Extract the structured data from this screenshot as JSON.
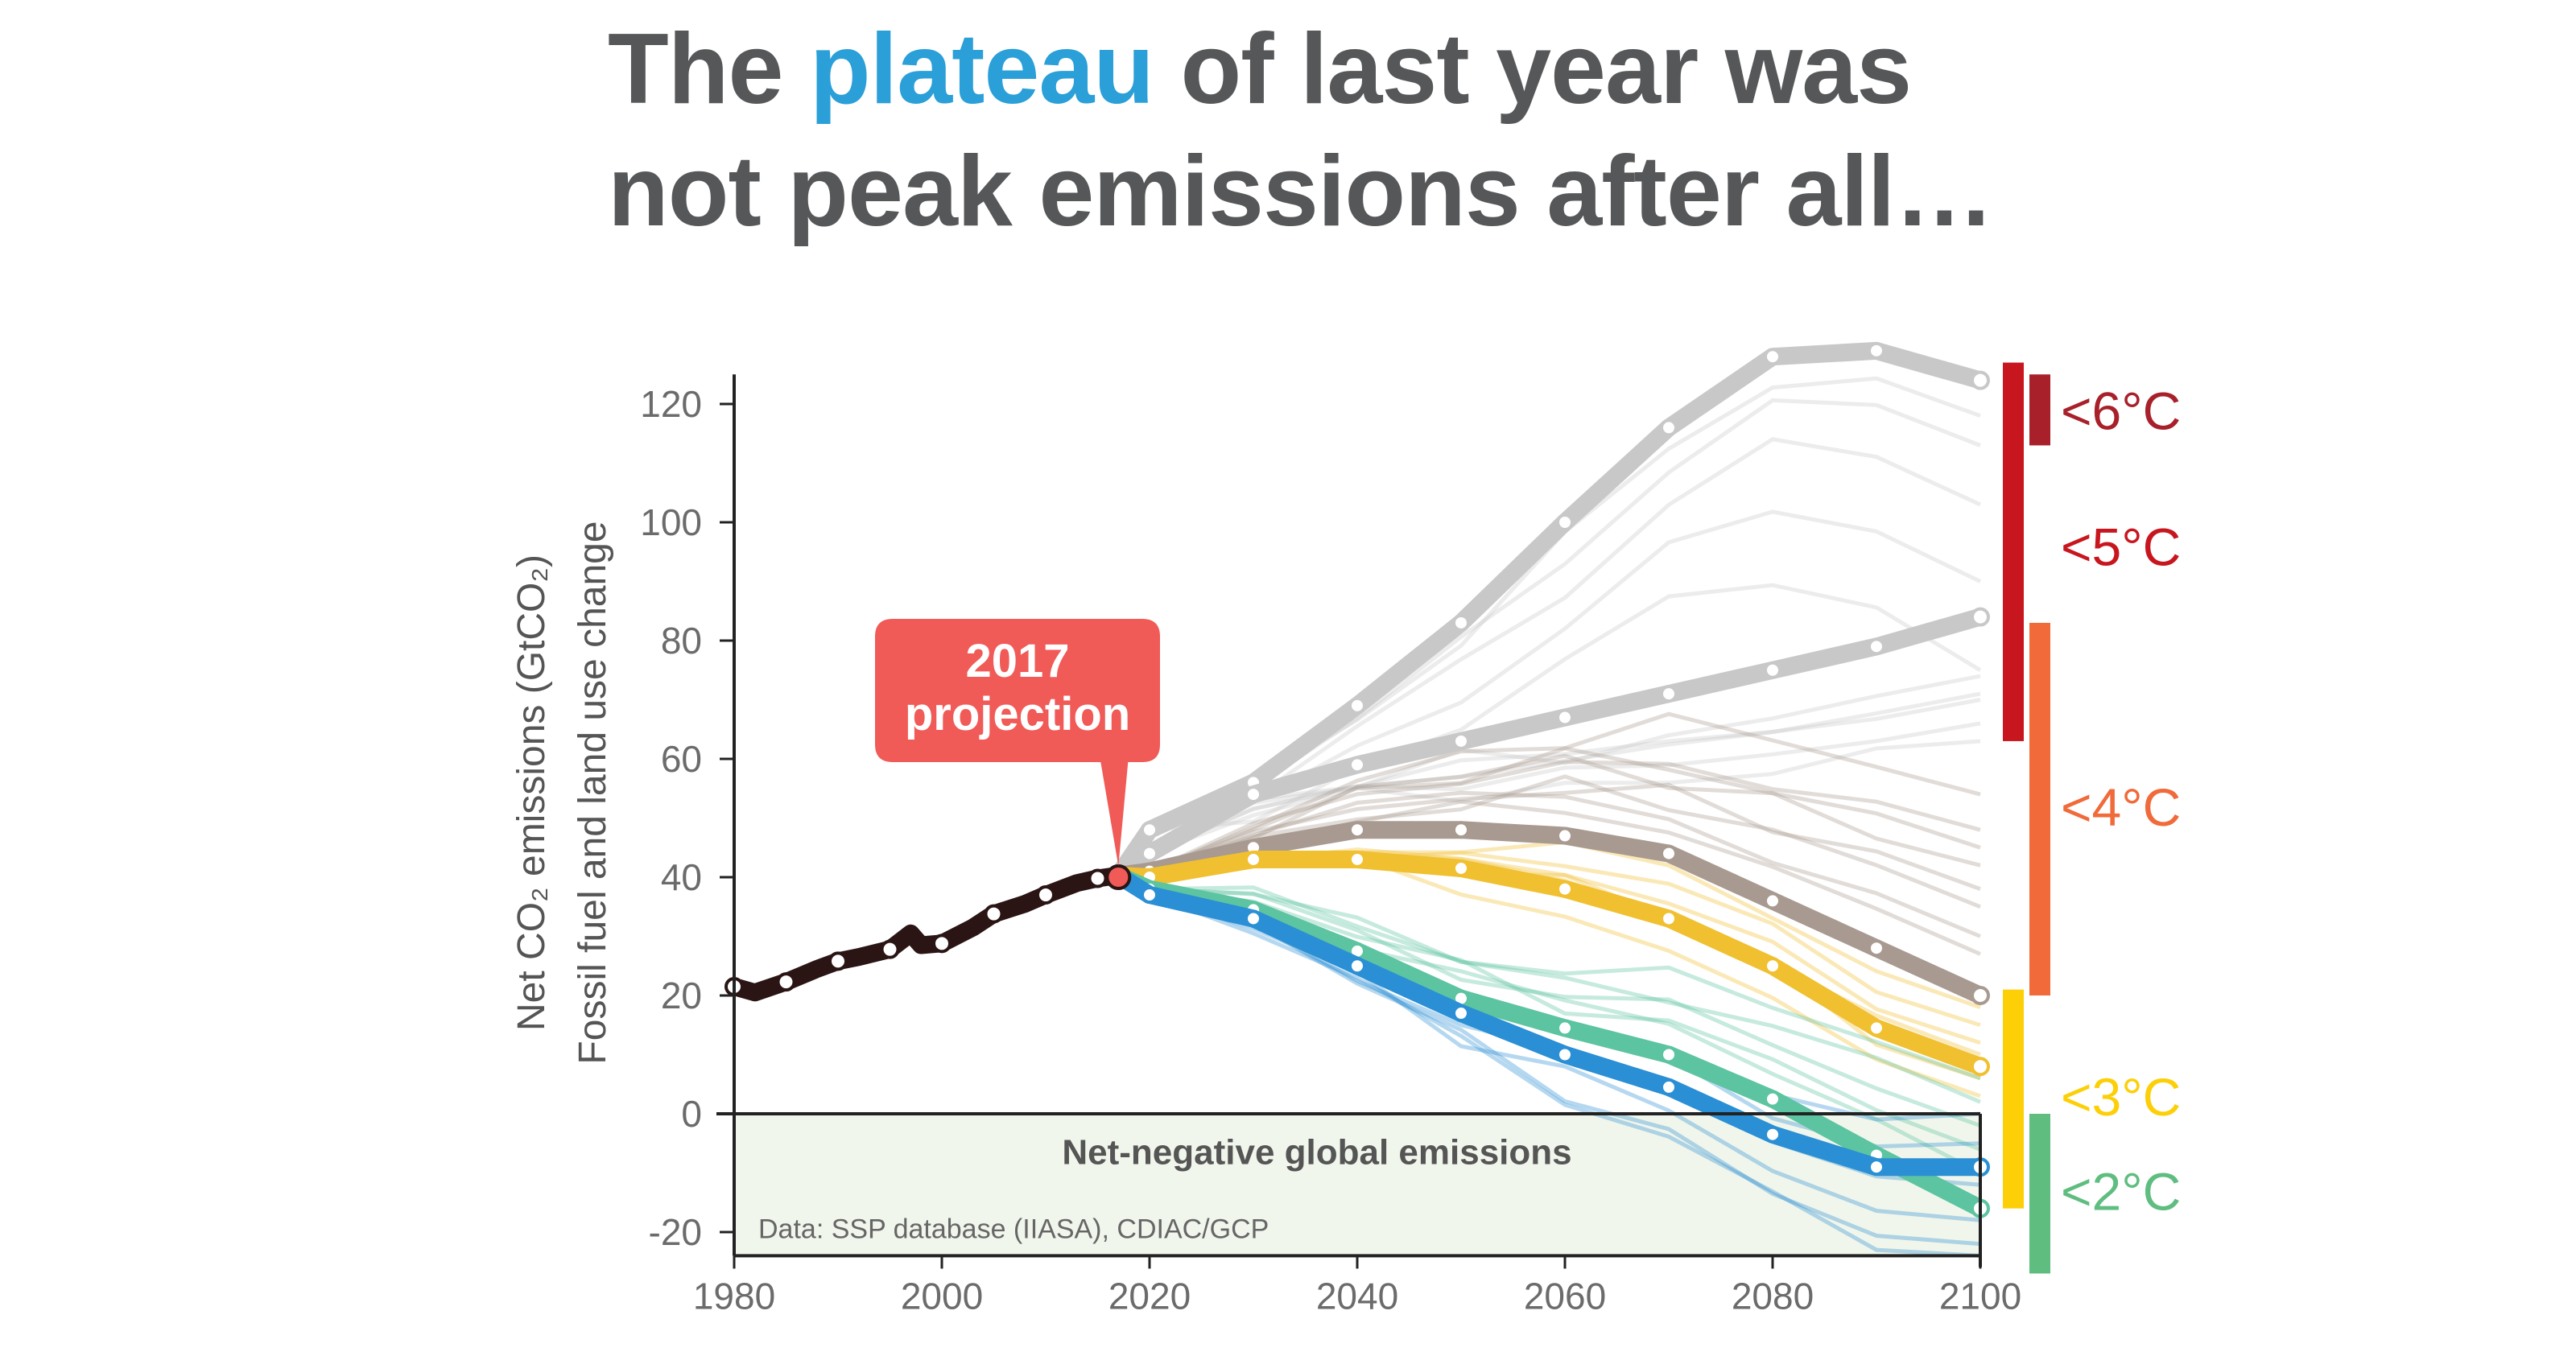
{
  "title": {
    "part1": "The ",
    "highlight": "plateau",
    "part2": " of last year was",
    "line2": "not peak emissions after all…"
  },
  "colors": {
    "title": "#555759",
    "highlight": "#2a9fd8",
    "callout": "#f05a57",
    "negative_region": "#f1f6ec"
  },
  "chart_data": {
    "type": "line",
    "ylabel_line1": "Net CO₂ emissions (GtCO₂)",
    "ylabel_line2": "Fossil fuel and land use change",
    "xlim": [
      1980,
      2100
    ],
    "ylim": [
      -24,
      125
    ],
    "xticks": [
      "1980",
      "2000",
      "2020",
      "2040",
      "2060",
      "2080",
      "2100"
    ],
    "yticks": [
      "120",
      "100",
      "80",
      "60",
      "40",
      "20",
      "0",
      "-20"
    ],
    "grid": false,
    "region_label": "Net-negative global emissions",
    "source": "Data: SSP database (IIASA), CDIAC/GCP",
    "callout": {
      "line1": "2017",
      "line2": "projection",
      "x": 2017,
      "y": 40
    },
    "historical": {
      "color": "#2a1414",
      "x": [
        1980,
        1982,
        1985,
        1988,
        1990,
        1992,
        1995,
        1997,
        1998,
        2000,
        2003,
        2005,
        2008,
        2010,
        2013,
        2015,
        2017
      ],
      "y": [
        21.5,
        20.5,
        22.3,
        24.5,
        25.8,
        26.5,
        27.8,
        30.5,
        28.5,
        28.8,
        31.5,
        33.8,
        35.5,
        37,
        39,
        39.8,
        40.3
      ],
      "markers": [
        1980,
        1985,
        1990,
        1995,
        2000,
        2005,
        2010,
        2015
      ]
    },
    "projection_x": [
      2020,
      2030,
      2040,
      2050,
      2060,
      2070,
      2080,
      2090,
      2100
    ],
    "series": [
      {
        "color": "#c8c8c8",
        "y": [
          48,
          56,
          69,
          83,
          100,
          116,
          128,
          129,
          124
        ],
        "ensemble_2100": [
          118,
          113,
          103,
          90,
          75
        ]
      },
      {
        "color": "#c8c8c8",
        "y": [
          44,
          54,
          59,
          63,
          67,
          71,
          75,
          79,
          84
        ],
        "ensemble_2100": [
          74,
          71,
          70,
          66,
          63
        ]
      },
      {
        "color": "#a89a90",
        "y": [
          41,
          45,
          48,
          48,
          47,
          44,
          36,
          28,
          20
        ],
        "ensemble_2100": [
          54,
          48,
          45,
          42,
          38,
          35,
          30,
          27
        ]
      },
      {
        "color": "#f0c030",
        "y": [
          40,
          43,
          43,
          41.5,
          38,
          33,
          25,
          14.5,
          8
        ],
        "ensemble_2100": [
          18,
          15,
          12,
          10,
          6,
          3
        ]
      },
      {
        "color": "#5cc4a0",
        "y": [
          38,
          34.5,
          27.5,
          19.5,
          14.5,
          10,
          2.5,
          -7,
          -16
        ],
        "ensemble_2100": [
          6,
          2,
          -2,
          -6,
          -10
        ]
      },
      {
        "color": "#2a8fd4",
        "y": [
          37,
          33,
          25,
          17,
          10,
          4.5,
          -3.5,
          -9,
          -9
        ],
        "ensemble_2100": [
          0,
          -5,
          -12,
          -18,
          -22,
          -24
        ]
      }
    ],
    "temperature_bars": [
      {
        "label": "<6°C",
        "color": "#a8202a",
        "from": 113,
        "to": 125,
        "column": 2,
        "label_y": 119
      },
      {
        "label": "<5°C",
        "color": "#c8161f",
        "from": 63,
        "to": 127,
        "column": 1,
        "label_y": 96
      },
      {
        "label": "<4°C",
        "color": "#f06a3a",
        "from": 20,
        "to": 83,
        "column": 2,
        "label_y": 52
      },
      {
        "label": "<3°C",
        "color": "#fccf06",
        "from": -16,
        "to": 21,
        "column": 1,
        "label_y": 3
      },
      {
        "label": "<2°C",
        "color": "#5fbd80",
        "from": -27,
        "to": 0,
        "column": 2,
        "label_y": -13
      }
    ]
  }
}
